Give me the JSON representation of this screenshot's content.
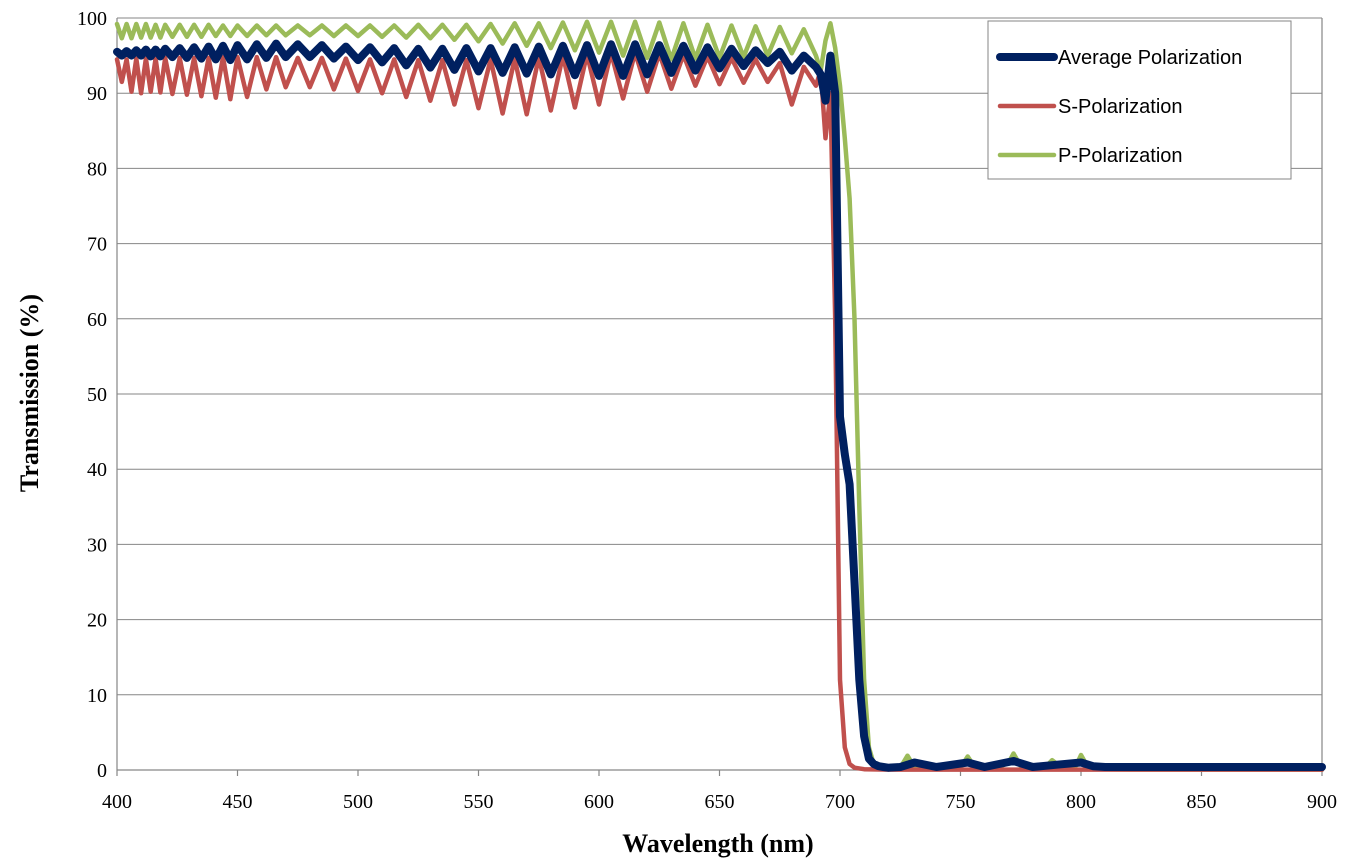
{
  "chart_data": {
    "type": "line",
    "xlabel": "Wavelength (nm)",
    "ylabel": "Transmission (%)",
    "xlim": [
      400,
      900
    ],
    "ylim": [
      0,
      100
    ],
    "x_ticks": [
      400,
      450,
      500,
      550,
      600,
      650,
      700,
      750,
      800,
      850,
      900
    ],
    "y_ticks": [
      0,
      10,
      20,
      30,
      40,
      50,
      60,
      70,
      80,
      90,
      100
    ],
    "grid": "horizontal",
    "legend_position": "top-right",
    "series": [
      {
        "name": "P-Polarization",
        "color": "#9BBB59",
        "line_width": 4.5,
        "x": [
          400,
          402,
          404,
          406,
          408,
          410,
          412,
          414,
          416,
          418,
          420,
          423,
          426,
          429,
          432,
          435,
          438,
          441,
          444,
          447,
          450,
          454,
          458,
          462,
          466,
          470,
          475,
          480,
          485,
          490,
          495,
          500,
          505,
          510,
          515,
          520,
          525,
          530,
          535,
          540,
          545,
          550,
          555,
          560,
          565,
          570,
          575,
          580,
          585,
          590,
          595,
          600,
          605,
          610,
          615,
          620,
          625,
          630,
          635,
          640,
          645,
          650,
          655,
          660,
          665,
          670,
          675,
          680,
          685,
          690,
          692,
          694,
          696,
          698,
          700,
          702,
          704,
          706,
          708,
          710,
          712,
          714,
          716,
          718,
          720,
          725,
          728,
          731,
          734,
          740,
          750,
          753,
          756,
          765,
          770,
          772,
          775,
          785,
          788,
          792,
          798,
          800,
          803,
          808,
          820,
          850,
          900
        ],
        "y": [
          99.2,
          97.3,
          99.2,
          97.3,
          99.2,
          97.4,
          99.2,
          97.4,
          99.1,
          97.4,
          99.1,
          97.5,
          99.1,
          97.5,
          99.1,
          97.5,
          99.1,
          97.6,
          99.0,
          97.6,
          99.0,
          97.6,
          99.0,
          97.7,
          99.0,
          97.7,
          99.0,
          97.7,
          99.0,
          97.6,
          99.0,
          97.6,
          99.0,
          97.5,
          99.0,
          97.4,
          99.1,
          97.3,
          99.1,
          97.1,
          99.1,
          96.9,
          99.2,
          96.6,
          99.3,
          96.3,
          99.3,
          96.0,
          99.4,
          95.7,
          99.5,
          95.4,
          99.5,
          95.0,
          99.5,
          94.7,
          99.4,
          94.5,
          99.3,
          94.6,
          99.1,
          94.7,
          99.0,
          94.8,
          98.9,
          95.0,
          98.8,
          95.3,
          98.5,
          95.0,
          93.0,
          97.0,
          99.3,
          96.0,
          91.0,
          84.0,
          76.0,
          60.0,
          35.0,
          12.0,
          3.0,
          0.8,
          0.3,
          0.2,
          0.1,
          0.3,
          1.9,
          0.3,
          0.1,
          0.1,
          0.3,
          1.8,
          0.3,
          0.2,
          1.0,
          2.2,
          0.5,
          0.3,
          1.3,
          0.3,
          0.6,
          2.0,
          0.3,
          0.1,
          0.05,
          0.05,
          0.05
        ]
      },
      {
        "name": "S-Polarization",
        "color": "#C0504D",
        "line_width": 4.5,
        "x": [
          400,
          402,
          404,
          406,
          408,
          410,
          412,
          414,
          416,
          418,
          420,
          423,
          426,
          429,
          432,
          435,
          438,
          441,
          444,
          447,
          450,
          454,
          458,
          462,
          466,
          470,
          475,
          480,
          485,
          490,
          495,
          500,
          505,
          510,
          515,
          520,
          525,
          530,
          535,
          540,
          545,
          550,
          555,
          560,
          565,
          570,
          575,
          580,
          585,
          590,
          595,
          600,
          605,
          610,
          615,
          620,
          625,
          630,
          635,
          640,
          645,
          650,
          655,
          660,
          665,
          670,
          675,
          680,
          685,
          690,
          692,
          694,
          696,
          698,
          700,
          702,
          704,
          706,
          710,
          720,
          750,
          800,
          850,
          900
        ],
        "y": [
          94.5,
          91.5,
          94.5,
          90.2,
          94.6,
          90.0,
          94.6,
          90.2,
          94.6,
          90.1,
          94.7,
          89.9,
          94.7,
          89.8,
          94.7,
          89.6,
          94.7,
          89.4,
          94.8,
          89.2,
          94.8,
          89.5,
          94.8,
          90.5,
          94.8,
          90.8,
          94.7,
          90.8,
          94.7,
          90.5,
          94.6,
          90.3,
          94.5,
          90.0,
          94.5,
          89.5,
          94.4,
          89.0,
          94.4,
          88.5,
          94.4,
          88.0,
          94.5,
          87.3,
          94.6,
          87.2,
          94.8,
          87.7,
          95.0,
          88.1,
          95.2,
          88.5,
          95.4,
          89.3,
          95.4,
          90.2,
          95.3,
          90.6,
          95.1,
          91.0,
          94.9,
          91.2,
          94.7,
          91.4,
          94.5,
          91.5,
          94.0,
          88.5,
          93.5,
          91.0,
          93.0,
          84.0,
          90.0,
          60.0,
          12.0,
          3.0,
          0.8,
          0.3,
          0.1,
          0.05,
          0.05,
          0.05,
          0.05,
          0.05
        ]
      },
      {
        "name": "Average Polarization",
        "color": "#002060",
        "line_width": 8,
        "x": [
          400,
          402,
          404,
          406,
          408,
          410,
          412,
          414,
          416,
          418,
          420,
          423,
          426,
          429,
          432,
          435,
          438,
          441,
          444,
          447,
          450,
          454,
          458,
          462,
          466,
          470,
          475,
          480,
          485,
          490,
          495,
          500,
          505,
          510,
          515,
          520,
          525,
          530,
          535,
          540,
          545,
          550,
          555,
          560,
          565,
          570,
          575,
          580,
          585,
          590,
          595,
          600,
          605,
          610,
          615,
          620,
          625,
          630,
          635,
          640,
          645,
          650,
          655,
          660,
          665,
          670,
          675,
          680,
          685,
          690,
          692,
          694,
          696,
          698,
          700,
          702,
          704,
          706,
          708,
          710,
          712,
          714,
          716,
          718,
          720,
          725,
          731,
          740,
          753,
          760,
          772,
          780,
          790,
          800,
          805,
          810,
          850,
          900
        ],
        "y": [
          95.5,
          95.0,
          95.6,
          95.0,
          95.7,
          95.0,
          95.8,
          94.9,
          95.8,
          94.9,
          95.9,
          94.8,
          96.0,
          94.7,
          96.1,
          94.6,
          96.2,
          94.5,
          96.3,
          94.4,
          96.4,
          94.5,
          96.5,
          94.7,
          96.6,
          94.8,
          96.5,
          94.8,
          96.4,
          94.6,
          96.2,
          94.4,
          96.1,
          94.1,
          96.0,
          93.7,
          95.9,
          93.4,
          95.9,
          93.1,
          96.0,
          92.9,
          96.0,
          92.7,
          96.1,
          92.6,
          96.2,
          92.5,
          96.3,
          92.4,
          96.4,
          92.3,
          96.5,
          92.3,
          96.5,
          92.5,
          96.4,
          92.7,
          96.3,
          93.0,
          96.1,
          93.3,
          95.9,
          93.6,
          95.7,
          94.0,
          95.5,
          93.0,
          95.0,
          93.5,
          92.5,
          89.0,
          95.0,
          90.0,
          47.0,
          42.0,
          38.0,
          25.0,
          12.0,
          4.5,
          1.5,
          0.8,
          0.5,
          0.4,
          0.3,
          0.4,
          1.0,
          0.4,
          1.0,
          0.4,
          1.2,
          0.4,
          0.7,
          1.0,
          0.5,
          0.4,
          0.4,
          0.4
        ]
      }
    ],
    "legend": [
      {
        "label": "Average Polarization",
        "color": "#002060",
        "line_width": 8
      },
      {
        "label": "S-Polarization",
        "color": "#C0504D",
        "line_width": 4.5
      },
      {
        "label": "P-Polarization",
        "color": "#9BBB59",
        "line_width": 4.5
      }
    ]
  }
}
